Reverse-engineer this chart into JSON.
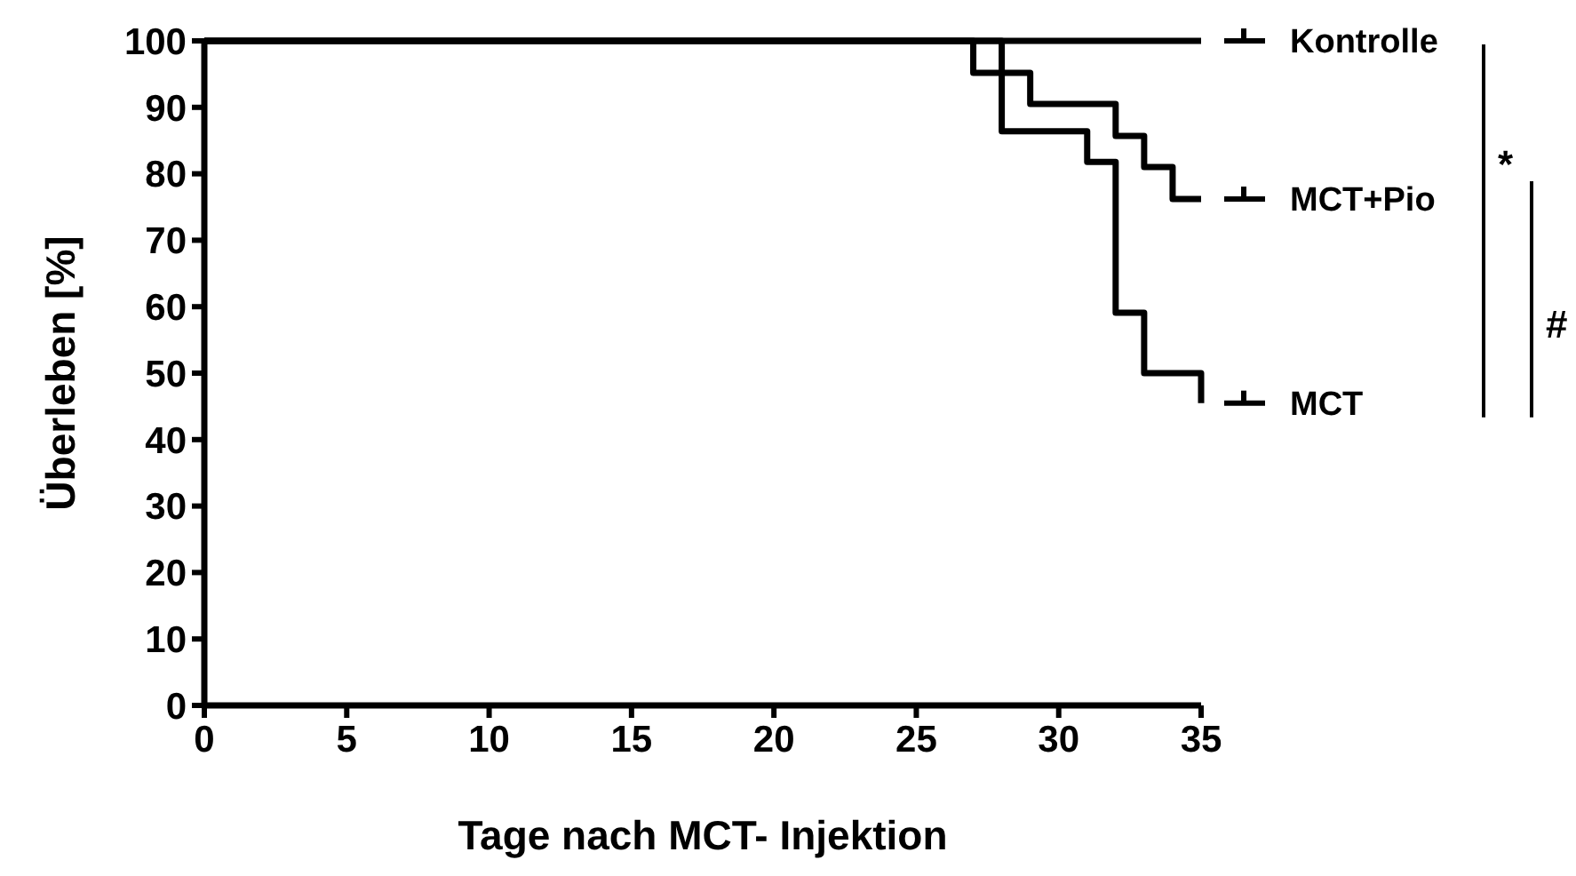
{
  "chart_data": {
    "type": "step",
    "xlabel": "Tage nach MCT- Injektion",
    "ylabel": "Überleben [%]",
    "xlim": [
      0,
      35
    ],
    "xticks": [
      0,
      5,
      10,
      15,
      20,
      25,
      30,
      35
    ],
    "ylim": [
      0,
      100
    ],
    "yticks": [
      0,
      10,
      20,
      30,
      40,
      50,
      60,
      70,
      80,
      90,
      100
    ],
    "grid": false,
    "legend": "right",
    "line_style": "solid",
    "series": [
      {
        "name": "Kontrolle",
        "color": "#000000",
        "x": [
          0,
          35
        ],
        "values": [
          100,
          100
        ]
      },
      {
        "name": "MCT+Pio",
        "color": "#000000",
        "x": [
          0,
          27,
          29,
          32,
          33,
          34,
          35
        ],
        "values": [
          100,
          95.2,
          90.5,
          85.7,
          81,
          76.2,
          76.2
        ]
      },
      {
        "name": "MCT",
        "color": "#000000",
        "x": [
          0,
          28,
          31,
          32,
          33,
          35
        ],
        "values": [
          100,
          86.4,
          81.8,
          59.1,
          50,
          45.5
        ]
      }
    ],
    "annotations": [
      "*",
      "#"
    ]
  }
}
